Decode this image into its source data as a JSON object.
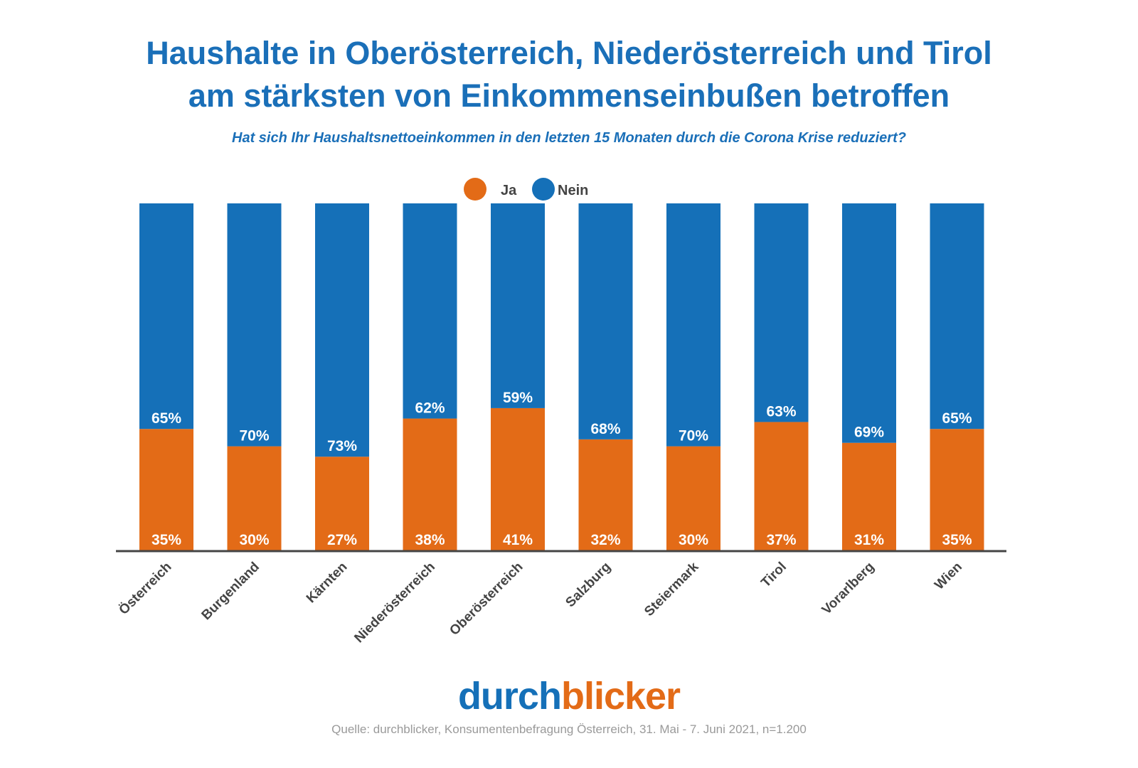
{
  "chart_data": {
    "type": "bar",
    "stacked": true,
    "title": "Haushalte in Oberösterreich, Niederösterreich und Tirol am stärksten von Einkommenseinbußen betroffen",
    "title_lines": [
      "Haushalte in Oberösterreich, Niederösterreich und Tirol",
      "am stärksten von Einkommenseinbußen betroffen"
    ],
    "subtitle": "Hat sich Ihr Haushaltsnettoeinkommen in den letzten 15 Monaten durch die Corona Krise reduziert?",
    "categories": [
      "Österreich",
      "Burgenland",
      "Kärnten",
      "Niederösterreich",
      "Oberösterreich",
      "Salzburg",
      "Steiermark",
      "Tirol",
      "Vorarlberg",
      "Wien"
    ],
    "series": [
      {
        "name": "Ja",
        "color": "#e36b17",
        "values": [
          35,
          30,
          27,
          38,
          41,
          32,
          30,
          37,
          31,
          35
        ]
      },
      {
        "name": "Nein",
        "color": "#1570b8",
        "values": [
          65,
          70,
          73,
          62,
          59,
          68,
          70,
          63,
          69,
          65
        ]
      }
    ],
    "unit": "%",
    "ylim": [
      0,
      100
    ],
    "grid": false,
    "legend_position": "top-center"
  },
  "branding": {
    "logo_part1": "durch",
    "logo_part2": "blicker"
  },
  "source": "Quelle: durchblicker, Konsumentenbefragung Österreich, 31. Mai - 7. Juni 2021, n=1.200"
}
